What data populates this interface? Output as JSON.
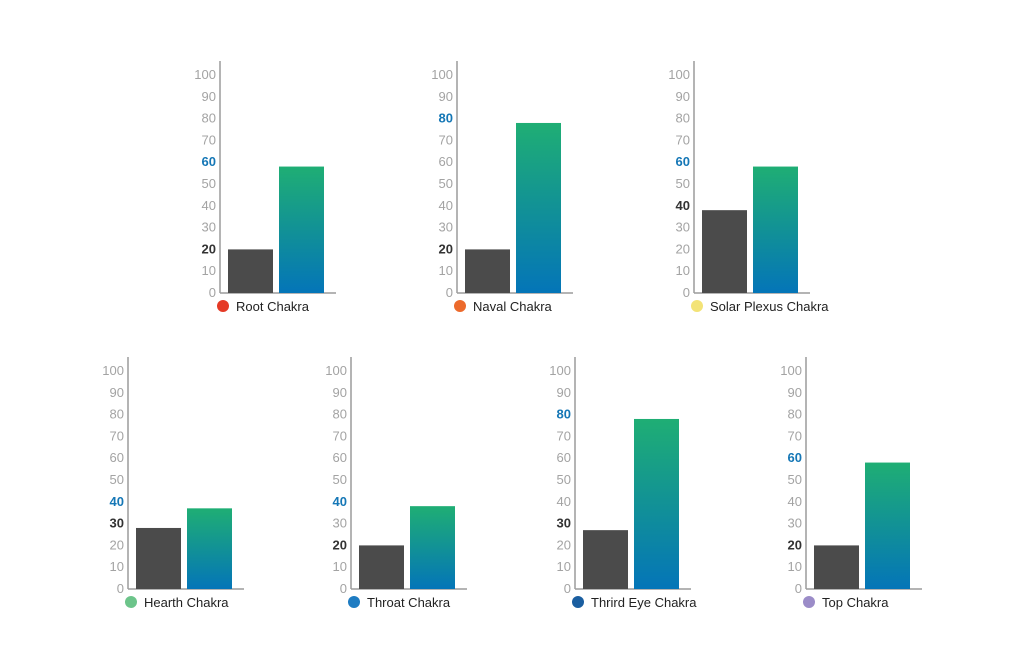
{
  "colors": {
    "current_bar": "#4b4b4b",
    "target_top": "#1fae74",
    "target_bottom": "#0475b8",
    "axis": "#9c9c9c",
    "tick": "#a3a3a3",
    "tick_highlight_target": "#1577b6",
    "tick_highlight_current": "#333333"
  },
  "chart_data": [
    {
      "type": "bar",
      "name": "Root Chakra",
      "dot_color": "#e53a26",
      "categories": [
        "",
        ""
      ],
      "values": [
        20,
        58
      ],
      "ticks": [
        "0",
        "10",
        "20",
        "30",
        "40",
        "50",
        "60",
        "70",
        "80",
        "90",
        "100"
      ],
      "highlight_ticks": {
        "current": "20",
        "target": "60"
      },
      "ylim": [
        0,
        100
      ]
    },
    {
      "type": "bar",
      "name": "Naval Chakra",
      "dot_color": "#ec6a2c",
      "categories": [
        "",
        ""
      ],
      "values": [
        20,
        78
      ],
      "ticks": [
        "0",
        "10",
        "20",
        "30",
        "40",
        "50",
        "60",
        "70",
        "80",
        "90",
        "100"
      ],
      "highlight_ticks": {
        "current": "20",
        "target": "80"
      },
      "ylim": [
        0,
        100
      ]
    },
    {
      "type": "bar",
      "name": "Solar Plexus Chakra",
      "dot_color": "#f3e377",
      "categories": [
        "",
        ""
      ],
      "values": [
        38,
        58
      ],
      "ticks": [
        "0",
        "10",
        "20",
        "30",
        "40",
        "50",
        "60",
        "70",
        "80",
        "90",
        "100"
      ],
      "highlight_ticks": {
        "current": "40",
        "target": "60"
      },
      "ylim": [
        0,
        100
      ]
    },
    {
      "type": "bar",
      "name": "Hearth Chakra",
      "dot_color": "#6cc48a",
      "categories": [
        "",
        ""
      ],
      "values": [
        28,
        37
      ],
      "ticks": [
        "0",
        "10",
        "20",
        "30",
        "40",
        "50",
        "60",
        "70",
        "80",
        "90",
        "100"
      ],
      "highlight_ticks": {
        "current": "30",
        "target": "40"
      },
      "ylim": [
        0,
        100
      ]
    },
    {
      "type": "bar",
      "name": "Throat Chakra",
      "dot_color": "#1e7cc2",
      "categories": [
        "",
        ""
      ],
      "values": [
        20,
        38
      ],
      "ticks": [
        "0",
        "10",
        "20",
        "30",
        "40",
        "50",
        "60",
        "70",
        "80",
        "90",
        "100"
      ],
      "highlight_ticks": {
        "current": "20",
        "target": "40"
      },
      "ylim": [
        0,
        100
      ]
    },
    {
      "type": "bar",
      "name": "Thrird Eye Chakra",
      "dot_color": "#1a5ea0",
      "categories": [
        "",
        ""
      ],
      "values": [
        27,
        78
      ],
      "ticks": [
        "0",
        "10",
        "20",
        "30",
        "40",
        "50",
        "60",
        "70",
        "80",
        "90",
        "100"
      ],
      "highlight_ticks": {
        "current": "30",
        "target": "80"
      },
      "ylim": [
        0,
        100
      ]
    },
    {
      "type": "bar",
      "name": "Top Chakra",
      "dot_color": "#9b8cc8",
      "categories": [
        "",
        ""
      ],
      "values": [
        20,
        58
      ],
      "ticks": [
        "0",
        "10",
        "20",
        "30",
        "40",
        "50",
        "60",
        "70",
        "80",
        "90",
        "100"
      ],
      "highlight_ticks": {
        "current": "20",
        "target": "60"
      },
      "ylim": [
        0,
        100
      ]
    }
  ]
}
